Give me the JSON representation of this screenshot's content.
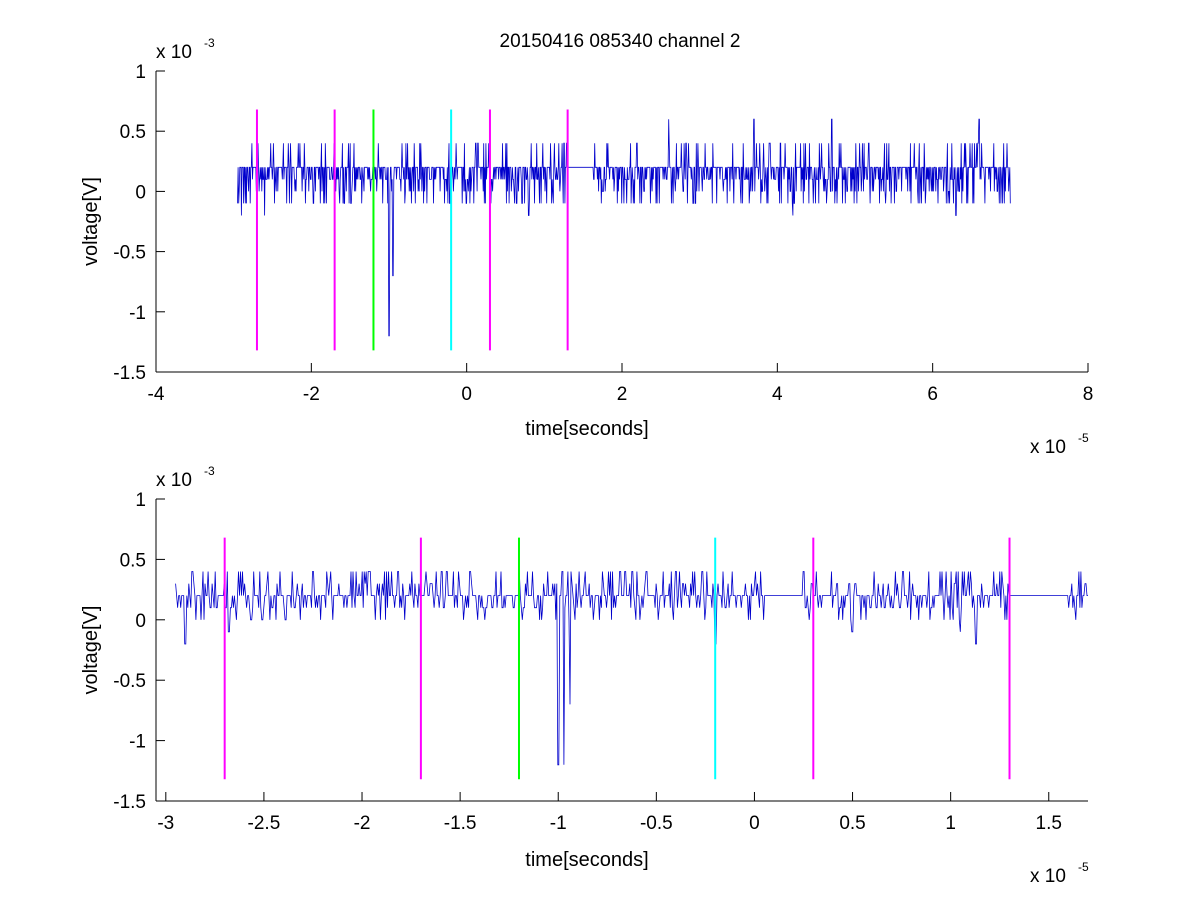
{
  "figure": {
    "title": "20150416 085340 channel 2"
  },
  "chart_data": [
    {
      "type": "line",
      "title": "20150416 085340 channel 2",
      "xlabel": "time[seconds]",
      "ylabel": "voltage[V]",
      "x_exponent_label": "x 10",
      "x_exponent": "-5",
      "y_exponent_label": "x 10",
      "y_exponent": "-3",
      "xlim": [
        -4,
        8
      ],
      "ylim": [
        -1.5,
        1
      ],
      "x_ticks": [
        -4,
        -2,
        0,
        2,
        4,
        6,
        8
      ],
      "x_tick_labels": [
        "-4",
        "-2",
        "0",
        "2",
        "4",
        "6",
        "8"
      ],
      "y_ticks": [
        -1.5,
        -1,
        -0.5,
        0,
        0.5,
        1
      ],
      "y_tick_labels": [
        "-1.5",
        "-1",
        "-0.5",
        "0",
        "0.5",
        "1"
      ],
      "grid": false,
      "series": [
        {
          "color": "#0000cc",
          "x_range": [
            -2.95,
            7.0
          ],
          "baseline": 0.2,
          "noise_levels": [
            0.2,
            0.1,
            0.2,
            0,
            0.2,
            0.4,
            0.2,
            -0.1,
            0.2,
            0.1
          ],
          "spikes": [
            {
              "x": -2.9,
              "y": -0.2
            },
            {
              "x": -2.6,
              "y": -0.2
            },
            {
              "x": -1.0,
              "y": -1.2
            },
            {
              "x": -0.95,
              "y": -0.7
            },
            {
              "x": 0.8,
              "y": -0.2
            },
            {
              "x": 2.6,
              "y": 0.6
            },
            {
              "x": 3.7,
              "y": 0.6
            },
            {
              "x": 4.2,
              "y": -0.2
            },
            {
              "x": 4.7,
              "y": 0.6
            },
            {
              "x": 6.3,
              "y": -0.2
            },
            {
              "x": 6.6,
              "y": 0.6
            }
          ]
        }
      ],
      "markers": [
        {
          "x": -2.7,
          "color": "#ff00ff",
          "y_top": 0.68,
          "y_bottom": -1.32
        },
        {
          "x": -1.7,
          "color": "#ff00ff",
          "y_top": 0.68,
          "y_bottom": -1.32
        },
        {
          "x": -1.2,
          "color": "#00ff00",
          "y_top": 0.68,
          "y_bottom": -1.32
        },
        {
          "x": -0.2,
          "color": "#00ffff",
          "y_top": 0.68,
          "y_bottom": -1.32
        },
        {
          "x": 0.3,
          "color": "#ff00ff",
          "y_top": 0.68,
          "y_bottom": -1.32
        },
        {
          "x": 1.3,
          "color": "#ff00ff",
          "y_top": 0.68,
          "y_bottom": -1.32
        }
      ]
    },
    {
      "type": "line",
      "title": "",
      "xlabel": "time[seconds]",
      "ylabel": "voltage[V]",
      "x_exponent_label": "x 10",
      "x_exponent": "-5",
      "y_exponent_label": "x 10",
      "y_exponent": "-3",
      "xlim": [
        -3.05,
        1.7
      ],
      "ylim": [
        -1.5,
        1
      ],
      "x_ticks": [
        -3,
        -2.5,
        -2,
        -1.5,
        -1,
        -0.5,
        0,
        0.5,
        1,
        1.5
      ],
      "x_tick_labels": [
        "-3",
        "-2.5",
        "-2",
        "-1.5",
        "-1",
        "-0.5",
        "0",
        "0.5",
        "1",
        "1.5"
      ],
      "y_ticks": [
        -1.5,
        -1,
        -0.5,
        0,
        0.5,
        1
      ],
      "y_tick_labels": [
        "-1.5",
        "-1",
        "-0.5",
        "0",
        "0.5",
        "1"
      ],
      "grid": false,
      "series": [
        {
          "color": "#0000cc",
          "x_range": [
            -2.95,
            1.7
          ],
          "baseline": 0.2,
          "noise_levels": [
            0.2,
            0.1,
            0.2,
            0,
            0.2,
            0.4,
            0.2,
            0.3,
            0.1,
            0.2
          ],
          "spikes": [
            {
              "x": -2.9,
              "y": -0.2
            },
            {
              "x": -2.68,
              "y": -0.1
            },
            {
              "x": -2.25,
              "y": 0.4
            },
            {
              "x": -1.96,
              "y": 0.4
            },
            {
              "x": -1.45,
              "y": 0.4
            },
            {
              "x": -1.0,
              "y": -1.2
            },
            {
              "x": -0.97,
              "y": -1.2
            },
            {
              "x": -0.94,
              "y": -0.7
            },
            {
              "x": -0.55,
              "y": 0.4
            },
            {
              "x": -0.2,
              "y": -0.2
            },
            {
              "x": 0.25,
              "y": 0.4
            },
            {
              "x": 0.5,
              "y": -0.1
            },
            {
              "x": 1.05,
              "y": -0.1
            },
            {
              "x": 1.13,
              "y": -0.2
            },
            {
              "x": 1.25,
              "y": 0.4
            }
          ]
        }
      ],
      "markers": [
        {
          "x": -2.7,
          "color": "#ff00ff",
          "y_top": 0.68,
          "y_bottom": -1.32
        },
        {
          "x": -1.7,
          "color": "#ff00ff",
          "y_top": 0.68,
          "y_bottom": -1.32
        },
        {
          "x": -1.2,
          "color": "#00ff00",
          "y_top": 0.68,
          "y_bottom": -1.32
        },
        {
          "x": -0.2,
          "color": "#00ffff",
          "y_top": 0.68,
          "y_bottom": -1.32
        },
        {
          "x": 0.3,
          "color": "#ff00ff",
          "y_top": 0.68,
          "y_bottom": -1.32
        },
        {
          "x": 1.3,
          "color": "#ff00ff",
          "y_top": 0.68,
          "y_bottom": -1.32
        }
      ]
    }
  ]
}
